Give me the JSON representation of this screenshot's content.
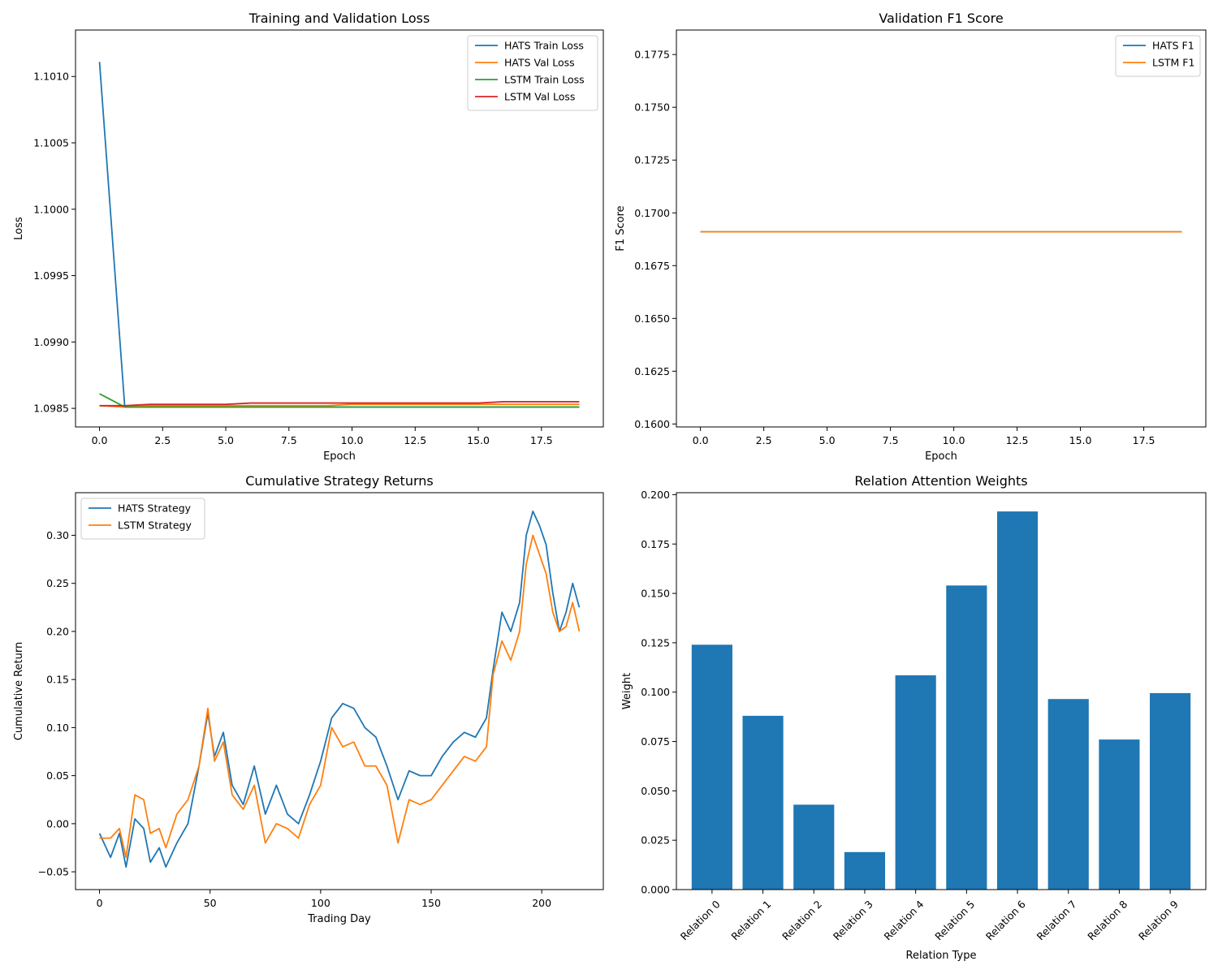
{
  "chart_data": [
    {
      "id": "loss",
      "type": "line",
      "title": "Training and Validation Loss",
      "xlabel": "Epoch",
      "ylabel": "Loss",
      "xlim": [
        -0.95,
        19.95
      ],
      "ylim": [
        1.09836,
        1.10135
      ],
      "xticks": [
        0,
        2.5,
        5,
        7.5,
        10,
        12.5,
        15,
        17.5
      ],
      "xtick_labels": [
        "0.0",
        "2.5",
        "5.0",
        "7.5",
        "10.0",
        "12.5",
        "15.0",
        "17.5"
      ],
      "yticks": [
        1.0985,
        1.099,
        1.0995,
        1.1,
        1.1005,
        1.101
      ],
      "ytick_labels": [
        "1.0985",
        "1.0990",
        "1.0995",
        "1.1000",
        "1.1005",
        "1.1010"
      ],
      "legend": "top-right",
      "grid": false,
      "series": [
        {
          "name": "HATS Train Loss",
          "color": "#1f77b4",
          "x": [
            0,
            1,
            2,
            3,
            4,
            5,
            6,
            7,
            8,
            9,
            10,
            11,
            12,
            13,
            14,
            15,
            16,
            17,
            18,
            19
          ],
          "y": [
            1.10111,
            1.09851,
            1.09851,
            1.09851,
            1.09851,
            1.09851,
            1.09851,
            1.09851,
            1.09851,
            1.09851,
            1.09851,
            1.09851,
            1.09851,
            1.09851,
            1.09851,
            1.09851,
            1.09851,
            1.09851,
            1.09851,
            1.09851
          ]
        },
        {
          "name": "HATS Val Loss",
          "color": "#ff7f0e",
          "x": [
            0,
            1,
            2,
            3,
            4,
            5,
            6,
            7,
            8,
            9,
            10,
            11,
            12,
            13,
            14,
            15,
            16,
            17,
            18,
            19
          ],
          "y": [
            1.09852,
            1.09851,
            1.09852,
            1.09852,
            1.09852,
            1.09852,
            1.09852,
            1.09852,
            1.09852,
            1.09852,
            1.09853,
            1.09853,
            1.09853,
            1.09853,
            1.09853,
            1.09853,
            1.09853,
            1.09853,
            1.09853,
            1.09853
          ]
        },
        {
          "name": "LSTM Train Loss",
          "color": "#2ca02c",
          "x": [
            0,
            1,
            2,
            3,
            4,
            5,
            6,
            7,
            8,
            9,
            10,
            11,
            12,
            13,
            14,
            15,
            16,
            17,
            18,
            19
          ],
          "y": [
            1.09861,
            1.09851,
            1.09851,
            1.09851,
            1.09851,
            1.09851,
            1.09851,
            1.09851,
            1.09851,
            1.09851,
            1.09851,
            1.09851,
            1.09851,
            1.09851,
            1.09851,
            1.09851,
            1.09851,
            1.09851,
            1.09851,
            1.09851
          ]
        },
        {
          "name": "LSTM Val Loss",
          "color": "#d62728",
          "x": [
            0,
            1,
            2,
            3,
            4,
            5,
            6,
            7,
            8,
            9,
            10,
            11,
            12,
            13,
            14,
            15,
            16,
            17,
            18,
            19
          ],
          "y": [
            1.09852,
            1.09852,
            1.09853,
            1.09853,
            1.09853,
            1.09853,
            1.09854,
            1.09854,
            1.09854,
            1.09854,
            1.09854,
            1.09854,
            1.09854,
            1.09854,
            1.09854,
            1.09854,
            1.09855,
            1.09855,
            1.09855,
            1.09855
          ]
        }
      ]
    },
    {
      "id": "f1",
      "type": "line",
      "title": "Validation F1 Score",
      "xlabel": "Epoch",
      "ylabel": "F1 Score",
      "xlim": [
        -0.95,
        19.95
      ],
      "ylim": [
        0.15986,
        0.17866
      ],
      "xticks": [
        0,
        2.5,
        5,
        7.5,
        10,
        12.5,
        15,
        17.5
      ],
      "xtick_labels": [
        "0.0",
        "2.5",
        "5.0",
        "7.5",
        "10.0",
        "12.5",
        "15.0",
        "17.5"
      ],
      "yticks": [
        0.16,
        0.1625,
        0.165,
        0.1675,
        0.17,
        0.1725,
        0.175,
        0.1775
      ],
      "ytick_labels": [
        "0.1600",
        "0.1625",
        "0.1650",
        "0.1675",
        "0.1700",
        "0.1725",
        "0.1750",
        "0.1775"
      ],
      "legend": "top-right",
      "grid": false,
      "series": [
        {
          "name": "HATS F1",
          "color": "#1f77b4",
          "x": [
            0,
            1,
            2,
            3,
            4,
            5,
            6,
            7,
            8,
            9,
            10,
            11,
            12,
            13,
            14,
            15,
            16,
            17,
            18,
            19
          ],
          "y": [
            0.1691,
            0.1691,
            0.1691,
            0.1691,
            0.1691,
            0.1691,
            0.1691,
            0.1691,
            0.1691,
            0.1691,
            0.1691,
            0.1691,
            0.1691,
            0.1691,
            0.1691,
            0.1691,
            0.1691,
            0.1691,
            0.1691,
            0.1691
          ]
        },
        {
          "name": "LSTM F1",
          "color": "#ff7f0e",
          "x": [
            0,
            1,
            2,
            3,
            4,
            5,
            6,
            7,
            8,
            9,
            10,
            11,
            12,
            13,
            14,
            15,
            16,
            17,
            18,
            19
          ],
          "y": [
            0.1691,
            0.1691,
            0.1691,
            0.1691,
            0.1691,
            0.1691,
            0.1691,
            0.1691,
            0.1691,
            0.1691,
            0.1691,
            0.1691,
            0.1691,
            0.1691,
            0.1691,
            0.1691,
            0.1691,
            0.1691,
            0.1691,
            0.1691
          ]
        }
      ]
    },
    {
      "id": "returns",
      "type": "line",
      "title": "Cumulative Strategy Returns",
      "xlabel": "Trading Day",
      "ylabel": "Cumulative Return",
      "xlim": [
        -10.85,
        227.85
      ],
      "ylim": [
        -0.0685,
        0.3443
      ],
      "xticks": [
        0,
        50,
        100,
        150,
        200
      ],
      "xtick_labels": [
        "0",
        "50",
        "100",
        "150",
        "200"
      ],
      "yticks": [
        -0.05,
        0,
        0.05,
        0.1,
        0.15,
        0.2,
        0.25,
        0.3
      ],
      "ytick_labels": [
        "−0.05",
        "0.00",
        "0.05",
        "0.10",
        "0.15",
        "0.20",
        "0.25",
        "0.30"
      ],
      "legend": "top-left",
      "grid": false,
      "series": [
        {
          "name": "HATS Strategy",
          "color": "#1f77b4",
          "x": [
            0,
            5,
            9,
            12,
            16,
            20,
            23,
            27,
            30,
            35,
            40,
            45,
            49,
            52,
            56,
            60,
            65,
            70,
            75,
            80,
            85,
            90,
            95,
            100,
            105,
            110,
            115,
            120,
            125,
            130,
            135,
            140,
            145,
            150,
            155,
            160,
            165,
            170,
            175,
            178,
            182,
            186,
            190,
            193,
            196,
            199,
            202,
            205,
            208,
            211,
            214,
            217
          ],
          "y": [
            -0.01,
            -0.035,
            -0.01,
            -0.045,
            0.005,
            -0.005,
            -0.04,
            -0.025,
            -0.045,
            -0.02,
            0.0,
            0.06,
            0.115,
            0.07,
            0.095,
            0.04,
            0.02,
            0.06,
            0.01,
            0.04,
            0.01,
            0.0,
            0.03,
            0.065,
            0.11,
            0.125,
            0.12,
            0.1,
            0.09,
            0.06,
            0.025,
            0.055,
            0.05,
            0.05,
            0.07,
            0.085,
            0.095,
            0.09,
            0.11,
            0.16,
            0.22,
            0.2,
            0.23,
            0.3,
            0.325,
            0.31,
            0.29,
            0.24,
            0.2,
            0.22,
            0.25,
            0.225
          ]
        },
        {
          "name": "LSTM Strategy",
          "color": "#ff7f0e",
          "x": [
            0,
            5,
            9,
            12,
            16,
            20,
            23,
            27,
            30,
            35,
            40,
            45,
            49,
            52,
            56,
            60,
            65,
            70,
            75,
            80,
            85,
            90,
            95,
            100,
            105,
            110,
            115,
            120,
            125,
            130,
            135,
            140,
            145,
            150,
            155,
            160,
            165,
            170,
            175,
            178,
            182,
            186,
            190,
            193,
            196,
            199,
            202,
            205,
            208,
            211,
            214,
            217
          ],
          "y": [
            -0.015,
            -0.015,
            -0.005,
            -0.035,
            0.03,
            0.025,
            -0.01,
            -0.005,
            -0.025,
            0.01,
            0.025,
            0.06,
            0.12,
            0.065,
            0.085,
            0.03,
            0.015,
            0.04,
            -0.02,
            0.0,
            -0.005,
            -0.015,
            0.02,
            0.04,
            0.1,
            0.08,
            0.085,
            0.06,
            0.06,
            0.04,
            -0.02,
            0.025,
            0.02,
            0.025,
            0.04,
            0.055,
            0.07,
            0.065,
            0.08,
            0.155,
            0.19,
            0.17,
            0.2,
            0.27,
            0.3,
            0.28,
            0.26,
            0.22,
            0.2,
            0.205,
            0.23,
            0.2
          ]
        }
      ]
    },
    {
      "id": "attention",
      "type": "bar",
      "title": "Relation Attention Weights",
      "xlabel": "Relation Type",
      "ylabel": "Weight",
      "categories": [
        "Relation 0",
        "Relation 1",
        "Relation 2",
        "Relation 3",
        "Relation 4",
        "Relation 5",
        "Relation 6",
        "Relation 7",
        "Relation 8",
        "Relation 9"
      ],
      "values": [
        0.124,
        0.088,
        0.043,
        0.019,
        0.1085,
        0.154,
        0.1915,
        0.0965,
        0.076,
        0.0995
      ],
      "ylim": [
        0,
        0.201
      ],
      "yticks": [
        0,
        0.025,
        0.05,
        0.075,
        0.1,
        0.125,
        0.15,
        0.175,
        0.2
      ],
      "ytick_labels": [
        "0.000",
        "0.025",
        "0.050",
        "0.075",
        "0.100",
        "0.125",
        "0.150",
        "0.175",
        "0.200"
      ],
      "color": "#1f77b4",
      "grid": false
    }
  ]
}
